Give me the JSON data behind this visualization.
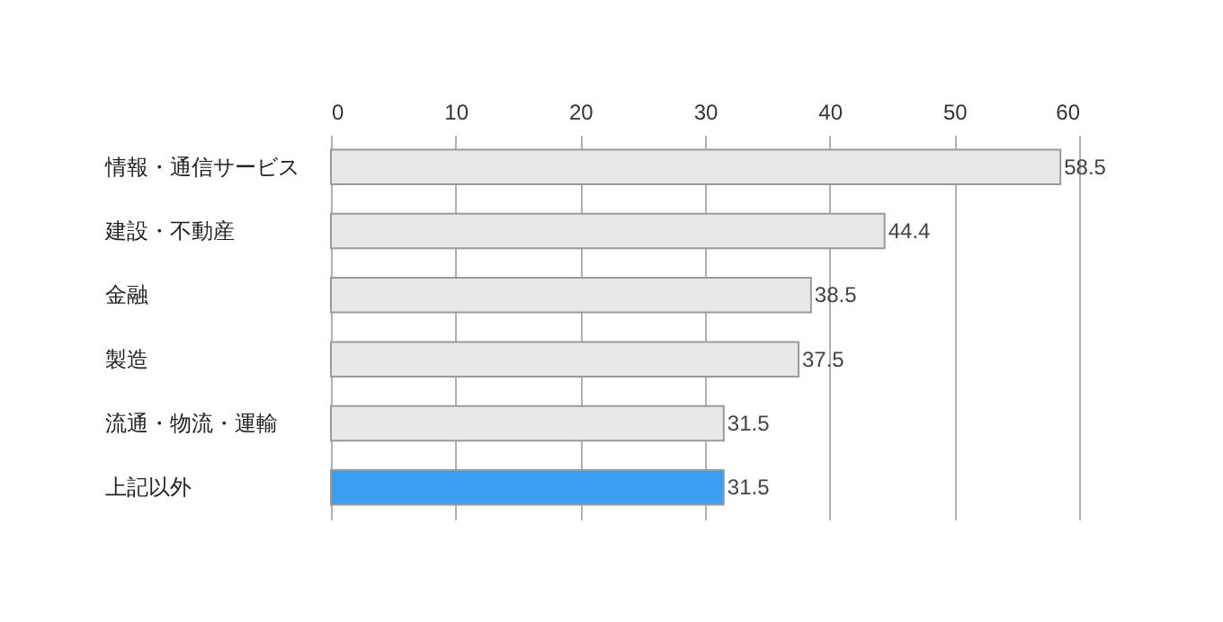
{
  "chart_data": {
    "type": "bar",
    "orientation": "horizontal",
    "categories": [
      "情報・通信サービス",
      "建設・不動産",
      "金融",
      "製造",
      "流通・物流・運輸",
      "上記以外"
    ],
    "values": [
      58.5,
      44.4,
      38.5,
      37.5,
      31.5,
      31.5
    ],
    "colors": [
      "#e6e8e9",
      "#e6e8e9",
      "#e6e8e9",
      "#e6e8e9",
      "#e6e8e9",
      "#3a9ff0"
    ],
    "xlim": [
      0,
      60
    ],
    "xticks": [
      0,
      10,
      20,
      30,
      40,
      50,
      60
    ],
    "grid": "x",
    "data_labels": true
  }
}
